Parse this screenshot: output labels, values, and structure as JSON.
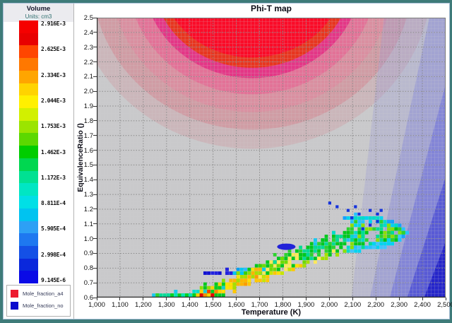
{
  "window": {
    "frame_color": "#3e7b79"
  },
  "colorbar": {
    "title": "Volume",
    "units": "Units: cm3",
    "labels": [
      "2.916E-3",
      "2.625E-3",
      "2.334E-3",
      "2.044E-3",
      "1.753E-3",
      "1.462E-3",
      "1.172E-3",
      "8.811E-4",
      "5.905E-4",
      "2.998E-4",
      "9.145E-6"
    ],
    "colors": [
      "#f50000",
      "#e80000",
      "#ff4600",
      "#ff7800",
      "#ffa500",
      "#ffd300",
      "#fff000",
      "#d2f000",
      "#9be400",
      "#5cd800",
      "#00cd00",
      "#00d750",
      "#00e192",
      "#00e6c3",
      "#00dfe6",
      "#00c3f0",
      "#2da0f5",
      "#1e78f0",
      "#1450e6",
      "#0a28dc",
      "#0a0ae6"
    ]
  },
  "legend": {
    "entries": [
      {
        "label": "Mole_fraction_a4",
        "color": "#ed1b30"
      },
      {
        "label": "Mole_fraction_no",
        "color": "#0b0bcd"
      }
    ]
  },
  "chart_data": {
    "type": "heatmap",
    "title": "Phi-T map",
    "xlabel": "Temperature (K)",
    "ylabel": "EquivalenceRatio ()",
    "xlim": [
      1000,
      2500
    ],
    "ylim": [
      0.6,
      2.5
    ],
    "x_ticks": [
      "1,000",
      "1,100",
      "1,200",
      "1,300",
      "1,400",
      "1,500",
      "1,600",
      "1,700",
      "1,800",
      "1,900",
      "2,000",
      "2,100",
      "2,200",
      "2,300",
      "2,400",
      "2,500"
    ],
    "y_ticks": [
      "2.5",
      "2.4",
      "2.3",
      "2.2",
      "2.1",
      "2.0",
      "1.9",
      "1.8",
      "1.7",
      "1.6",
      "1.5",
      "1.4",
      "1.3",
      "1.2",
      "1.1",
      "1.0",
      "0.9",
      "0.8",
      "0.7",
      "0.6"
    ],
    "grid": "dashed",
    "plot_bg": "#c9c9cb",
    "red_contour": {
      "name": "Mole_fraction_a4",
      "center": [
        1668,
        2.78
      ],
      "rings": [
        {
          "rx": 775,
          "ry": 1.17,
          "color": "rgba(207,142,152,0.32)"
        },
        {
          "rx": 690,
          "ry": 1.04,
          "color": "rgba(216,124,138,0.45)"
        },
        {
          "rx": 610,
          "ry": 0.92,
          "color": "rgba(226,133,156,0.55)"
        },
        {
          "rx": 535,
          "ry": 0.8,
          "color": "rgba(232,98,146,0.65)"
        },
        {
          "rx": 468,
          "ry": 0.69,
          "color": "rgba(228,44,130,0.85)"
        },
        {
          "rx": 428,
          "ry": 0.62,
          "color": "#e8351f"
        },
        {
          "rx": 392,
          "ry": 0.55,
          "color": "#fb0b28"
        }
      ]
    },
    "blue_bands": {
      "name": "Mole_fraction_no",
      "polys": [
        {
          "pts": [
            [
              2235,
              2.5
            ],
            [
              2500,
              2.5
            ],
            [
              2500,
              0.6
            ],
            [
              2095,
              0.6
            ]
          ],
          "color": "rgba(148,150,214,0.30)"
        },
        {
          "pts": [
            [
              2430,
              2.5
            ],
            [
              2500,
              2.5
            ],
            [
              2500,
              0.6
            ],
            [
              2175,
              0.6
            ]
          ],
          "color": "rgba(130,133,218,0.42)"
        },
        {
          "pts": [
            [
              2500,
              2.05
            ],
            [
              2500,
              0.6
            ],
            [
              2260,
              0.6
            ]
          ],
          "color": "rgba(100,103,220,0.50)"
        },
        {
          "pts": [
            [
              2500,
              1.42
            ],
            [
              2500,
              0.6
            ],
            [
              2335,
              0.6
            ]
          ],
          "color": "rgba(62,64,212,0.62)"
        },
        {
          "pts": [
            [
              2500,
              0.98
            ],
            [
              2500,
              0.6
            ],
            [
              2408,
              0.6
            ]
          ],
          "color": "rgba(28,28,200,0.85)"
        }
      ]
    },
    "band": {
      "path": [
        [
          1225,
          0.6,
          0.03
        ],
        [
          1330,
          0.615,
          0.035
        ],
        [
          1430,
          0.632,
          0.042
        ],
        [
          1510,
          0.66,
          0.048
        ],
        [
          1590,
          0.71,
          0.052
        ],
        [
          1670,
          0.768,
          0.056
        ],
        [
          1770,
          0.828,
          0.062
        ],
        [
          1870,
          0.888,
          0.07
        ],
        [
          1970,
          0.948,
          0.08
        ],
        [
          2060,
          1.005,
          0.092
        ],
        [
          2145,
          1.05,
          0.1
        ]
      ],
      "segments": [
        {
          "t0": 1225,
          "t1": 1405,
          "p": [
            [
              "#00c81e",
              "#00e0a0",
              "#25c3ff"
            ],
            [
              "#00d21e",
              "#19cdd2",
              "#00e6b4",
              "#2ed22e"
            ],
            [
              "#19c8f0",
              "#2ed22e",
              "#00dc96"
            ]
          ]
        },
        {
          "t0": 1405,
          "t1": 1545,
          "p": [
            [
              "#ff8c00",
              "#e81400",
              "#00c81e",
              "#ffd200"
            ],
            [
              "#00d21e",
              "#ffd200",
              "#19cdd2",
              "#ff6a00"
            ],
            [
              "#00c81e",
              "#00e0c8",
              "#8ae000"
            ]
          ]
        },
        {
          "t0": 1545,
          "t1": 1705,
          "p": [
            [
              "#ff9b00",
              "#ffc800",
              "#ffe100"
            ],
            [
              "#ffe100",
              "#a5e000",
              "#ffb400"
            ],
            [
              "#3cd200",
              "#00c81e",
              "#8ae000"
            ]
          ]
        },
        {
          "t0": 1705,
          "t1": 1885,
          "p": [
            [
              "#ffe100",
              "#c8e600",
              "#ffc800"
            ],
            [
              "#6edc00",
              "#00c81e",
              "#ffe95a"
            ],
            [
              "#00c81e",
              "#00dc96",
              "#2ed22e"
            ]
          ]
        },
        {
          "t0": 1885,
          "t1": 2065,
          "p": [
            [
              "#a5e000",
              "#ffe95a",
              "#00c81e"
            ],
            [
              "#00c81e",
              "#00dc96",
              "#2ed22e"
            ],
            [
              "#00dcc8",
              "#19c8f0",
              "#00c81e"
            ]
          ]
        },
        {
          "t0": 2065,
          "t1": 2150,
          "p": [
            [
              "#00c81e",
              "#00dcc8",
              "#8ae000"
            ],
            [
              "#00dcc8",
              "#25c3ff",
              "#00c81e"
            ],
            [
              "#25c3ff",
              "#00d8e6",
              "#2ed22e"
            ]
          ]
        }
      ]
    },
    "hook": {
      "upper": [
        [
          2055,
          1.155
        ],
        [
          2250,
          1.165
        ],
        [
          2318,
          1.045
        ]
      ],
      "lower": [
        [
          2318,
          1.045
        ],
        [
          2245,
          0.955
        ],
        [
          2085,
          0.94
        ]
      ],
      "upper_colors": [
        "#25c3ff",
        "#00d4f0",
        "#00dcc8",
        "#18a0ff"
      ],
      "lower_colors": [
        "#40c6ff",
        "#25c3ff",
        "#00d4f0"
      ],
      "interior_colors": [
        "#00c814",
        "#2ed22e",
        "#00dc96",
        "#8ae000"
      ]
    },
    "blue_streak": {
      "phi": 0.775,
      "t_range": [
        1455,
        1725
      ],
      "left_colors": [
        "#1414d2",
        "#2222e0"
      ],
      "right_colors": [
        "#00a0f0",
        "#30b8ff",
        "#00c8f0"
      ]
    },
    "blue_specks": [
      [
        1995,
        1.26
      ],
      [
        2030,
        1.235
      ],
      [
        2068,
        1.21
      ],
      [
        2100,
        1.225
      ],
      [
        2128,
        1.19
      ],
      [
        2162,
        1.215
      ],
      [
        2195,
        1.185
      ],
      [
        2222,
        1.2
      ],
      [
        2086,
        1.165
      ],
      [
        2140,
        1.08
      ],
      [
        2172,
        1.115
      ],
      [
        2205,
        1.14
      ]
    ],
    "blue_speck_color": "#1432dc",
    "red_spots": [
      [
        1438,
        0.625,
        "#e80000"
      ],
      [
        1466,
        0.653,
        "#ff3c00"
      ],
      [
        1494,
        0.622,
        "#e80000"
      ],
      [
        1512,
        0.648,
        "#ff8c00"
      ],
      [
        1450,
        0.607,
        "#ff3c00"
      ]
    ],
    "blue_ellipse": {
      "t": 1815,
      "phi": 0.945,
      "color": "#2222d8"
    }
  }
}
